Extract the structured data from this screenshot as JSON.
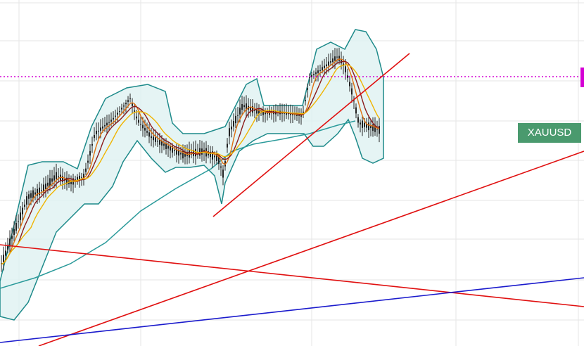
{
  "symbol_label": "XAUUSD"
}
